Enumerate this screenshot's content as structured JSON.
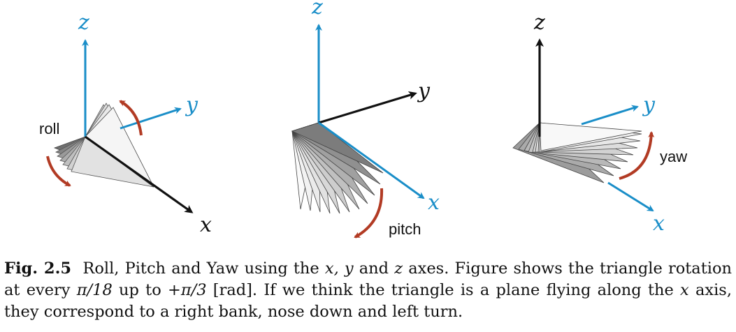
{
  "colors": {
    "axis_blue": "#1a8ec8",
    "axis_black": "#111111",
    "arrow_red": "#b23b24",
    "triangle_dark": "#8a8a8a",
    "triangle_light": "#f4f4f4"
  },
  "panels": {
    "roll": {
      "z_label": "z",
      "y_label": "y",
      "x_label": "x",
      "motion_label": "roll"
    },
    "pitch": {
      "z_label": "z",
      "y_label": "y",
      "x_label": "x",
      "motion_label": "pitch"
    },
    "yaw": {
      "z_label": "z",
      "y_label": "y",
      "x_label": "x",
      "motion_label": "yaw"
    }
  },
  "caption": {
    "label": "Fig. 2.5",
    "t1": "Roll, Pitch and Yaw using the ",
    "m1": "x, y",
    "t2": " and ",
    "m2": "z",
    "t3": " axes. Figure shows the triangle rotation at every ",
    "m3": "π/18",
    "t4": " up to ",
    "m4": "+π/3",
    "t5": " [rad]. If we think the triangle is a plane flying along the ",
    "m5": "x",
    "t6": " axis, they correspond to a right bank, nose down and left turn."
  }
}
